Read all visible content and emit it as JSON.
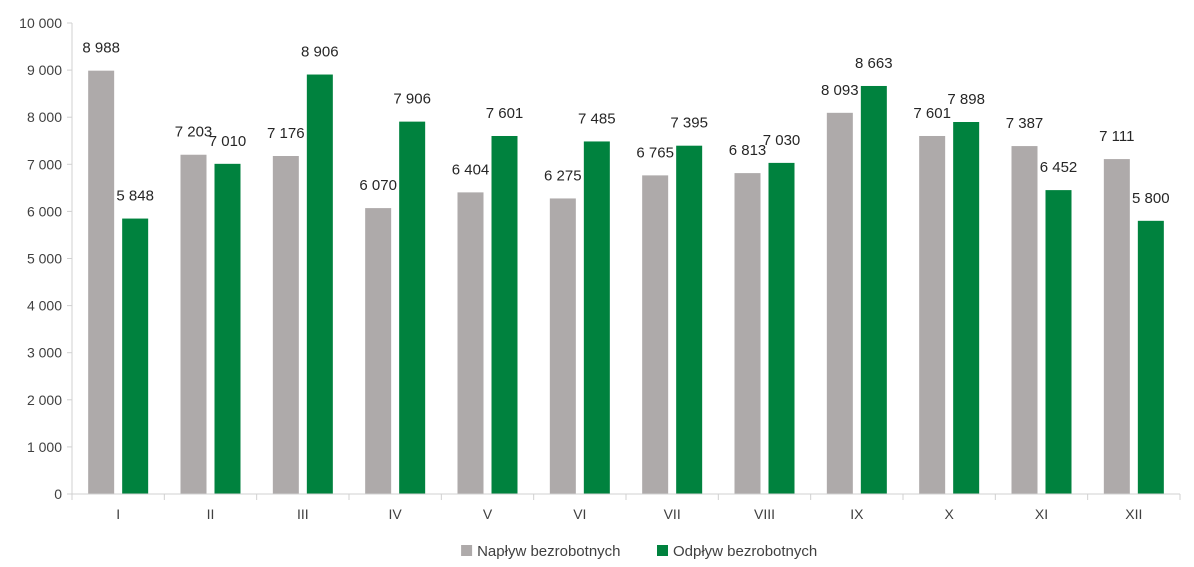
{
  "chart_data": {
    "type": "bar",
    "title": "",
    "xlabel": "",
    "ylabel": "",
    "categories": [
      "I",
      "II",
      "III",
      "IV",
      "V",
      "VI",
      "VII",
      "VIII",
      "IX",
      "X",
      "XI",
      "XII"
    ],
    "series": [
      {
        "name": "Napływ bezrobotnych",
        "color": "#aeaaaa",
        "values": [
          8988,
          7203,
          7176,
          6070,
          6404,
          6275,
          6765,
          6813,
          8093,
          7601,
          7387,
          7111
        ],
        "labels": [
          "8 988",
          "7 203",
          "7 176",
          "6 070",
          "6 404",
          "6 275",
          "6 765",
          "6 813",
          "8 093",
          "7 601",
          "7 387",
          "7 111"
        ]
      },
      {
        "name": "Odpływ bezrobotnych",
        "color": "#00823e",
        "values": [
          5848,
          7010,
          8906,
          7906,
          7601,
          7485,
          7395,
          7030,
          8663,
          7898,
          6452,
          5800
        ],
        "labels": [
          "5 848",
          "7 010",
          "8 906",
          "7 906",
          "7 601",
          "7 485",
          "7 395",
          "7 030",
          "8 663",
          "7 898",
          "6 452",
          "5 800"
        ]
      }
    ],
    "ylim": [
      0,
      10000
    ],
    "yticks": [
      0,
      1000,
      2000,
      3000,
      4000,
      5000,
      6000,
      7000,
      8000,
      9000,
      10000
    ],
    "ytick_labels": [
      "0",
      "1 000",
      "2 000",
      "3 000",
      "4 000",
      "5 000",
      "6 000",
      "7 000",
      "8 000",
      "9 000",
      "10 000"
    ],
    "grid": false,
    "legend_position": "bottom-center"
  }
}
